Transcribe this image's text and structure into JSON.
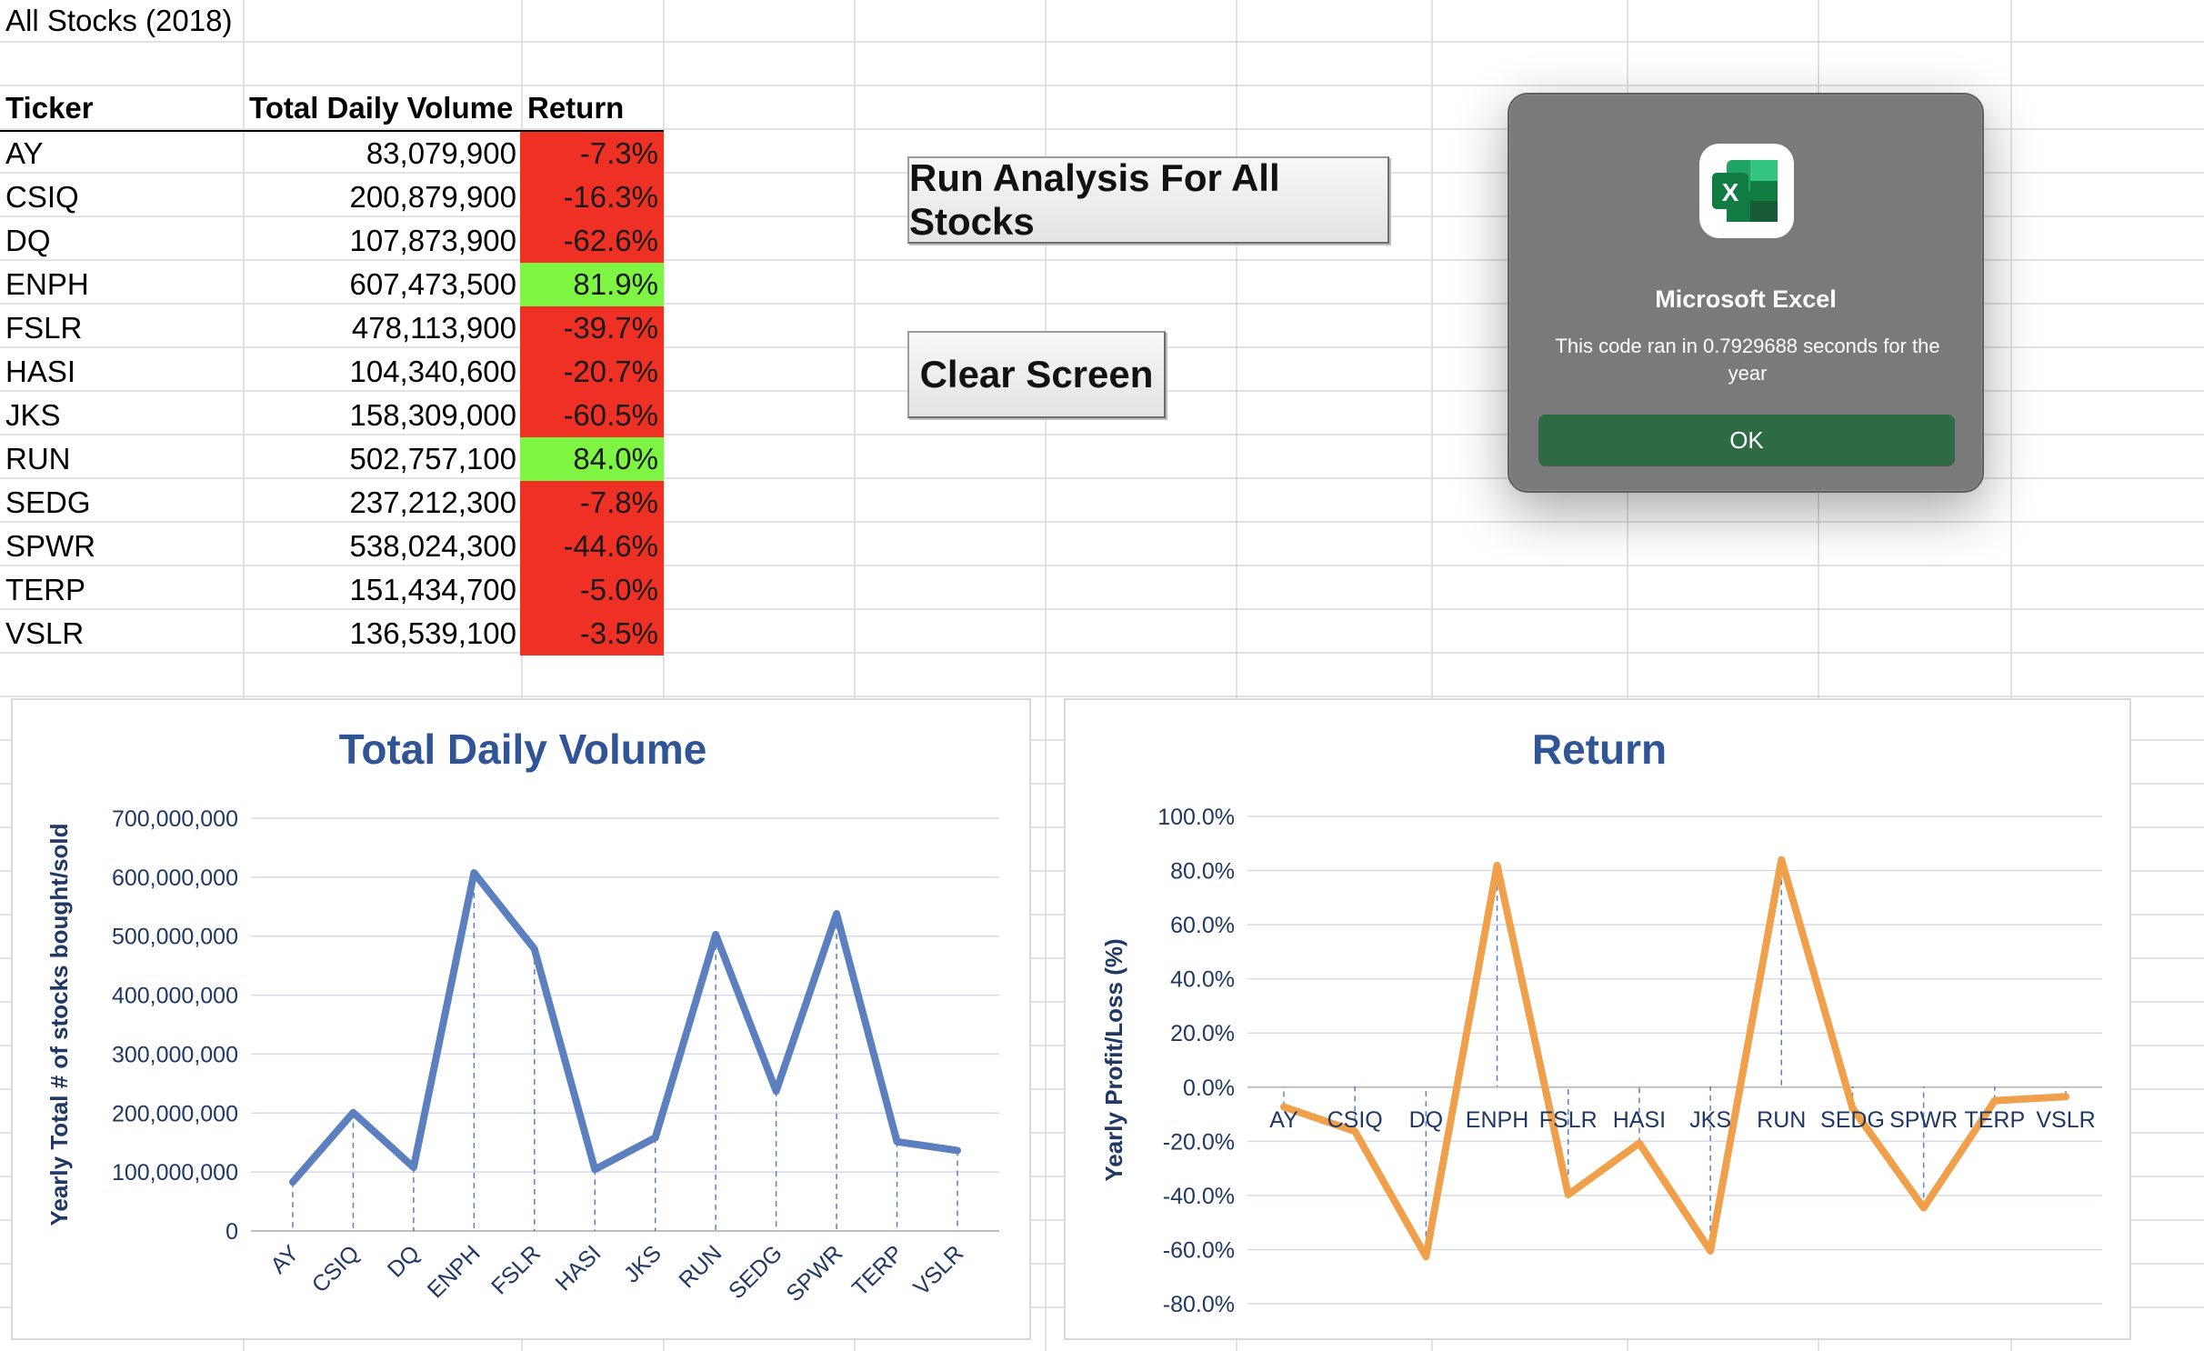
{
  "sheet": {
    "title": "All Stocks (2018)",
    "headers": {
      "ticker": "Ticker",
      "volume": "Total Daily Volume",
      "return": "Return"
    },
    "rows": [
      {
        "ticker": "AY",
        "volume": "83,079,900",
        "return": "-7.3%",
        "status": "negative"
      },
      {
        "ticker": "CSIQ",
        "volume": "200,879,900",
        "return": "-16.3%",
        "status": "negative"
      },
      {
        "ticker": "DQ",
        "volume": "107,873,900",
        "return": "-62.6%",
        "status": "negative"
      },
      {
        "ticker": "ENPH",
        "volume": "607,473,500",
        "return": "81.9%",
        "status": "positive"
      },
      {
        "ticker": "FSLR",
        "volume": "478,113,900",
        "return": "-39.7%",
        "status": "negative"
      },
      {
        "ticker": "HASI",
        "volume": "104,340,600",
        "return": "-20.7%",
        "status": "negative"
      },
      {
        "ticker": "JKS",
        "volume": "158,309,000",
        "return": "-60.5%",
        "status": "negative"
      },
      {
        "ticker": "RUN",
        "volume": "502,757,100",
        "return": "84.0%",
        "status": "positive"
      },
      {
        "ticker": "SEDG",
        "volume": "237,212,300",
        "return": "-7.8%",
        "status": "negative"
      },
      {
        "ticker": "SPWR",
        "volume": "538,024,300",
        "return": "-44.6%",
        "status": "negative"
      },
      {
        "ticker": "TERP",
        "volume": "151,434,700",
        "return": "-5.0%",
        "status": "negative"
      },
      {
        "ticker": "VSLR",
        "volume": "136,539,100",
        "return": "-3.5%",
        "status": "negative"
      }
    ]
  },
  "buttons": {
    "run_label": "Run Analysis For All Stocks",
    "clear_label": "Clear Screen"
  },
  "dialog": {
    "app_icon": "excel-icon",
    "title": "Microsoft Excel",
    "message": "This code ran in 0.7929688 seconds for the year",
    "ok_label": "OK"
  },
  "colors": {
    "negative": "#ee3124",
    "positive": "#7ef542",
    "volume_line": "#5b7fbf",
    "return_line": "#f0a04b",
    "chart_text": "#1f3864",
    "chart_title": "#2f5597",
    "gridline": "#d6dce5"
  },
  "chart_data": [
    {
      "type": "line",
      "title": "Total Daily Volume",
      "xlabel": "",
      "ylabel": "Yearly Total # of stocks bought/sold",
      "categories": [
        "AY",
        "CSIQ",
        "DQ",
        "ENPH",
        "FSLR",
        "HASI",
        "JKS",
        "RUN",
        "SEDG",
        "SPWR",
        "TERP",
        "VSLR"
      ],
      "values": [
        83079900,
        200879900,
        107873900,
        607473500,
        478113900,
        104340600,
        158309000,
        502757100,
        237212300,
        538024300,
        151434700,
        136539100
      ],
      "ylim": [
        0,
        700000000
      ],
      "yticks": [
        "0",
        "100,000,000",
        "200,000,000",
        "300,000,000",
        "400,000,000",
        "500,000,000",
        "600,000,000",
        "700,000,000"
      ],
      "drop_lines": true,
      "grid": true
    },
    {
      "type": "line",
      "title": "Return",
      "xlabel": "",
      "ylabel": "Yearly Profit/Loss (%)",
      "categories": [
        "AY",
        "CSIQ",
        "DQ",
        "ENPH",
        "FSLR",
        "HASI",
        "JKS",
        "RUN",
        "SEDG",
        "SPWR",
        "TERP",
        "VSLR"
      ],
      "values": [
        -7.3,
        -16.3,
        -62.6,
        81.9,
        -39.7,
        -20.7,
        -60.5,
        84.0,
        -7.8,
        -44.6,
        -5.0,
        -3.5
      ],
      "ylim": [
        -80,
        100
      ],
      "yticks": [
        "-80.0%",
        "-60.0%",
        "-40.0%",
        "-20.0%",
        "0.0%",
        "20.0%",
        "40.0%",
        "60.0%",
        "80.0%",
        "100.0%"
      ],
      "drop_lines": true,
      "grid": true
    }
  ]
}
